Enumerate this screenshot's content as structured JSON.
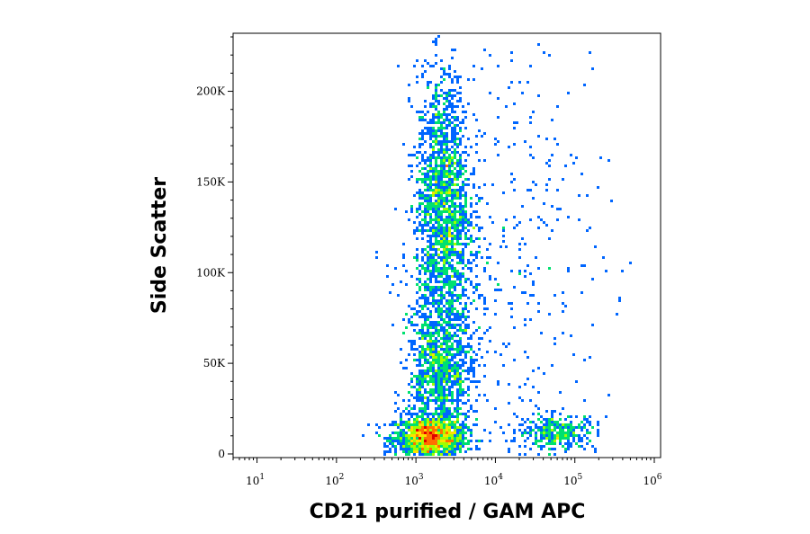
{
  "chart_data": {
    "type": "scatter",
    "title": "",
    "xlabel": "CD21 purified / GAM APC",
    "ylabel": "Side Scatter",
    "x_scale": "log",
    "y_scale": "linear",
    "xlim": [
      5,
      1200000
    ],
    "ylim": [
      -2000,
      232000
    ],
    "grid": false,
    "legend": "none",
    "density_colormap": [
      "#0000c8",
      "#0066ff",
      "#00ccff",
      "#00e070",
      "#a0ff00",
      "#ffe000",
      "#ff7000",
      "#e00000"
    ],
    "x_ticks": [
      {
        "value": 10,
        "base": "10",
        "exp": "1"
      },
      {
        "value": 100,
        "base": "10",
        "exp": "2"
      },
      {
        "value": 1000,
        "base": "10",
        "exp": "3"
      },
      {
        "value": 10000,
        "base": "10",
        "exp": "4"
      },
      {
        "value": 100000,
        "base": "10",
        "exp": "5"
      },
      {
        "value": 1000000,
        "base": "10",
        "exp": "6"
      }
    ],
    "y_ticks": [
      {
        "value": 0,
        "label": "0"
      },
      {
        "value": 50000,
        "label": "50K"
      },
      {
        "value": 100000,
        "label": "100K"
      },
      {
        "value": 150000,
        "label": "150K"
      },
      {
        "value": 200000,
        "label": "200K"
      }
    ],
    "populations": [
      {
        "label": "",
        "x_center": 1500,
        "y_center": 9000,
        "x_spread_log10": 0.22,
        "y_spread": 6000,
        "weight": 0.3
      },
      {
        "label": "",
        "x_center": 2200,
        "y_center": 140000,
        "x_spread_log10": 0.17,
        "y_spread": 35000,
        "weight": 0.32
      },
      {
        "label": "",
        "x_center": 2000,
        "y_center": 45000,
        "x_spread_log10": 0.2,
        "y_spread": 18000,
        "weight": 0.18
      },
      {
        "label": "",
        "x_center": 60000,
        "y_center": 12000,
        "x_spread_log10": 0.25,
        "y_spread": 5000,
        "weight": 0.07
      },
      {
        "label": "",
        "x_center": 2500,
        "y_center": 85000,
        "x_spread_log10": 0.3,
        "y_spread": 30000,
        "weight": 0.08
      },
      {
        "label": "",
        "x_center": 30000,
        "y_center": 120000,
        "x_spread_log10": 0.5,
        "y_spread": 60000,
        "weight": 0.05
      }
    ]
  }
}
